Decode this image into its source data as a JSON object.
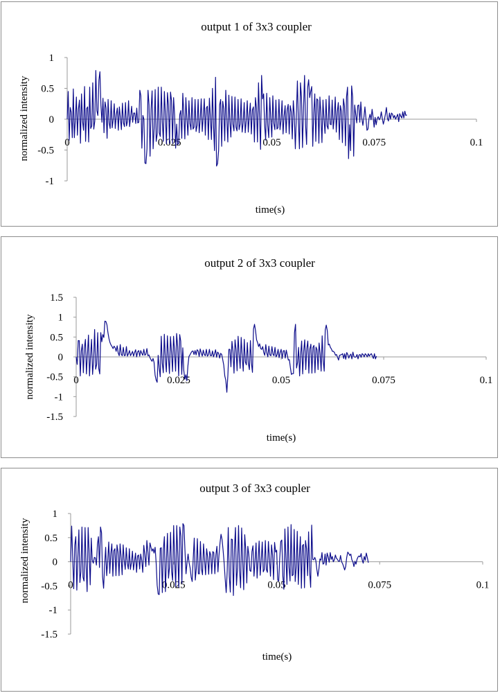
{
  "colors": {
    "series": "#0b0b8a",
    "axis": "#999999",
    "border": "#8c8c8c"
  },
  "chart_data": [
    {
      "type": "line",
      "title": "output 1 of 3x3 coupler",
      "xlabel": "time(s)",
      "ylabel": "normalized intensity",
      "xlim": [
        0,
        0.1
      ],
      "ylim": [
        -1,
        1
      ],
      "xticks": [
        0,
        0.025,
        0.05,
        0.075,
        0.1
      ],
      "xtick_labels": [
        "0",
        "0.025",
        "0.05",
        "0.075",
        "0.1"
      ],
      "yticks": [
        1,
        0.5,
        0,
        -0.5,
        -1
      ],
      "ytick_labels": [
        "1",
        "0.5",
        "0",
        "-0.5",
        "-1"
      ],
      "series": [
        {
          "name": "output 1",
          "x_step": 0.00025,
          "values": [
            0.0,
            0.45,
            -0.34,
            0.19,
            0.11,
            -0.3,
            0.49,
            -0.3,
            0.0,
            0.36,
            -0.26,
            0.16,
            0.31,
            -0.39,
            0.41,
            -0.03,
            -0.18,
            0.53,
            -0.36,
            0.17,
            0.2,
            -0.37,
            0.52,
            -0.15,
            -0.11,
            0.59,
            -0.16,
            -0.03,
            0.79,
            0.14,
            0.06,
            0.63,
            0.77,
            0.22,
            -0.05,
            0.34,
            -0.22,
            0.28,
            0.18,
            -0.31,
            0.32,
            -0.06,
            -0.15,
            0.3,
            -0.14,
            0.0,
            0.25,
            -0.15,
            0.07,
            0.18,
            -0.18,
            0.2,
            0.02,
            -0.17,
            0.26,
            -0.06,
            -0.12,
            0.27,
            -0.11,
            -0.03,
            0.3,
            -0.12,
            0.04,
            0.21,
            -0.05,
            0.1,
            0.1,
            -0.07,
            0.18,
            -0.06,
            -0.05,
            0.47,
            0.38,
            -0.47,
            0.06,
            0.0,
            -0.71,
            -0.72,
            -0.48,
            0.47,
            0.23,
            -0.6,
            0.16,
            0.46,
            -0.48,
            -0.15,
            0.48,
            -0.36,
            -0.24,
            0.52,
            -0.22,
            -0.28,
            0.52,
            -0.05,
            -0.36,
            0.45,
            0.07,
            -0.4,
            0.43,
            0.22,
            -0.39,
            0.44,
            0.3,
            -0.39,
            0.35,
            0.07,
            -0.47,
            -0.08,
            -0.41,
            -0.39,
            0.07,
            0.14,
            -0.31,
            0.42,
            0.09,
            -0.32,
            0.35,
            -0.0,
            -0.26,
            0.3,
            -0.07,
            -0.17,
            0.35,
            -0.16,
            -0.13,
            0.32,
            -0.2,
            -0.1,
            0.32,
            -0.22,
            -0.01,
            0.33,
            -0.2,
            0.04,
            0.33,
            -0.26,
            0.18,
            0.21,
            -0.33,
            0.34,
            0.02,
            -0.33,
            0.5,
            -0.1,
            -0.51,
            0.68,
            -0.76,
            -0.72,
            -0.51,
            0.23,
            0.32,
            -0.44,
            0.29,
            0.17,
            -0.35,
            0.47,
            0.02,
            -0.37,
            0.39,
            -0.04,
            -0.29,
            0.37,
            -0.08,
            -0.19,
            0.36,
            -0.13,
            -0.19,
            0.32,
            -0.17,
            -0.08,
            0.33,
            -0.21,
            -0.06,
            0.27,
            -0.22,
            -0.02,
            0.3,
            -0.21,
            0.06,
            0.26,
            -0.24,
            0.15,
            0.2,
            -0.37,
            0.35,
            0.18,
            -0.37,
            0.59,
            0.03,
            -0.49,
            0.71,
            0.33,
            0.41,
            -0.1,
            -0.34,
            0.42,
            -0.1,
            -0.3,
            0.35,
            0.0,
            -0.29,
            0.38,
            -0.07,
            -0.17,
            0.31,
            -0.16,
            -0.14,
            0.32,
            -0.17,
            -0.02,
            0.3,
            -0.24,
            0.05,
            0.22,
            -0.22,
            0.15,
            0.24,
            -0.24,
            0.22,
            0.12,
            -0.32,
            0.3,
            0.05,
            -0.48,
            0.07,
            0.62,
            -0.05,
            -0.48,
            0.59,
            0.36,
            -0.46,
            0.18,
            0.71,
            -0.1,
            -0.41,
            0.51,
            0.64,
            0.35,
            0.45,
            0.53,
            -0.44,
            0.1,
            0.41,
            -0.36,
            0.33,
            0.31,
            -0.39,
            0.36,
            0.07,
            -0.38,
            0.31,
            -0.0,
            -0.23,
            0.32,
            -0.11,
            -0.16,
            0.38,
            -0.08,
            -0.09,
            0.31,
            -0.16,
            0.02,
            0.36,
            -0.21,
            0.12,
            0.27,
            -0.33,
            0.22,
            0.13,
            -0.38,
            0.33,
            0.21,
            -0.43,
            0.36,
            0.52,
            -0.64,
            -0.09,
            -0.51,
            0.54,
            0.36,
            -0.6,
            0.23,
            0.08,
            -0.06,
            0.22,
            0.23,
            -0.05,
            0.28,
            0.01,
            -0.1,
            0.03,
            0.2,
            0.01,
            -0.18,
            -0.16,
            0.01,
            0.08,
            -0.01,
            0.16,
            0.03,
            -0.13,
            0.03,
            -0.09,
            0.01,
            0.04,
            -0.01,
            0.02,
            0.12,
            0.01,
            -0.08,
            -0.01,
            0.08,
            0.19,
            0.01,
            -0.03,
            0.1,
            0.0,
            0.1,
            0.08,
            0.02,
            0.06,
            0.0,
            0.04,
            0.08,
            -0.04,
            0.09,
            0.05,
            0.02,
            0.12,
            0.02,
            0.13,
            0.06,
            0.07
          ]
        }
      ]
    },
    {
      "type": "line",
      "title": "output 2 of 3x3 coupler",
      "xlabel": "time(s)",
      "ylabel": "normalized intensity",
      "xlim": [
        0,
        0.1
      ],
      "ylim": [
        -1.5,
        1.5
      ],
      "xticks": [
        0,
        0.025,
        0.05,
        0.075,
        0.1
      ],
      "xtick_labels": [
        "0",
        "0.025",
        "0.05",
        "0.075",
        "0.1"
      ],
      "yticks": [
        1.5,
        1,
        0.5,
        0,
        -0.5,
        -1,
        -1.5
      ],
      "ytick_labels": [
        "1.5",
        "1",
        "0.5",
        "0",
        "-0.5",
        "-1",
        "-1.5"
      ],
      "series": [
        {
          "name": "output 2",
          "x_step": 0.00025,
          "values": [
            0.0,
            -0.19,
            0.41,
            0.41,
            -0.48,
            0.15,
            0.32,
            -0.4,
            0.22,
            0.44,
            -0.43,
            0.08,
            0.55,
            -0.48,
            0.03,
            0.44,
            -0.44,
            -0.09,
            0.69,
            -0.31,
            -0.19,
            0.61,
            -0.29,
            -0.43,
            0.61,
            0.38,
            0.56,
            0.49,
            0.9,
            0.89,
            0.81,
            0.61,
            0.46,
            0.36,
            0.3,
            0.26,
            0.21,
            0.27,
            0.23,
            0.14,
            0.28,
            0.1,
            0.03,
            0.31,
            0.06,
            0.03,
            0.24,
            0.03,
            0.04,
            0.26,
            0.02,
            0.08,
            0.16,
            0.03,
            0.08,
            0.14,
            0.02,
            0.11,
            0.18,
            0.0,
            0.13,
            0.16,
            0.02,
            0.16,
            0.09,
            0.04,
            0.19,
            0.04,
            0.07,
            0.21,
            0.03,
            0.05,
            -0.02,
            -0.07,
            -0.11,
            -0.04,
            -0.14,
            -0.46,
            -0.58,
            -0.64,
            0.04,
            -0.27,
            -0.5,
            0.52,
            -0.16,
            -0.4,
            0.57,
            -0.04,
            -0.38,
            0.53,
            -0.01,
            -0.42,
            0.51,
            0.12,
            -0.37,
            0.52,
            0.14,
            -0.36,
            0.59,
            0.27,
            -0.48,
            0.56,
            0.4,
            -0.44,
            0.23,
            -0.34,
            -0.56,
            -0.45,
            -0.6,
            -0.23,
            0.01,
            0.05,
            0.1,
            0.14,
            0.15,
            0.06,
            0.16,
            0.05,
            0.18,
            0.15,
            0.01,
            0.2,
            0.1,
            0.02,
            0.17,
            0.06,
            0.03,
            0.19,
            0.02,
            0.05,
            0.19,
            0.03,
            0.03,
            0.15,
            -0.0,
            0.08,
            0.18,
            -0.01,
            0.12,
            0.09,
            -0.03,
            0.09,
            0.06,
            -0.07,
            -0.21,
            -0.48,
            -0.59,
            -0.89,
            -0.47,
            0.19,
            0.19,
            -0.25,
            0.39,
            0.14,
            -0.41,
            0.43,
            0.18,
            -0.35,
            0.52,
            0.06,
            -0.29,
            0.49,
            0.01,
            -0.36,
            0.44,
            -0.12,
            -0.2,
            0.36,
            -0.17,
            -0.32,
            0.41,
            -0.16,
            -0.39,
            0.7,
            0.82,
            0.66,
            0.43,
            0.36,
            0.26,
            0.33,
            0.21,
            0.19,
            0.26,
            0.11,
            0.04,
            0.31,
            0.1,
            0.0,
            0.27,
            0.05,
            0.03,
            0.26,
            0.07,
            0.03,
            0.24,
            0.0,
            0.05,
            0.19,
            -0.02,
            0.11,
            0.19,
            -0.04,
            0.15,
            0.16,
            -0.03,
            0.17,
            0.04,
            -0.08,
            -0.07,
            -0.27,
            -0.44,
            -0.42,
            -0.42,
            0.61,
            0.82,
            -0.28,
            -0.14,
            0.24,
            -0.48,
            0.06,
            0.4,
            -0.43,
            0.15,
            0.43,
            -0.32,
            0.21,
            0.4,
            -0.41,
            0.2,
            0.32,
            -0.41,
            0.24,
            0.29,
            -0.4,
            0.25,
            0.18,
            -0.32,
            0.35,
            0.09,
            -0.36,
            0.53,
            -0.08,
            -0.36,
            0.68,
            0.8,
            0.66,
            0.3,
            0.32,
            0.24,
            0.2,
            0.14,
            0.14,
            0.11,
            0.04,
            0.06,
            -0.01,
            -0.08,
            0.04,
            0.05,
            0.06,
            0.08,
            -0.04,
            0.08,
            -0.06,
            0.11,
            0.06,
            -0.03,
            0.04,
            0.07,
            -0.05,
            0.12,
            0.01,
            -0.01,
            -0.0,
            0.06,
            -0.05,
            0.05,
            0.06,
            -0.01,
            0.08,
            0.06,
            -0.0,
            0.08,
            0.05,
            0.0,
            0.08,
            0.02,
            0.06,
            0.08,
            0.02,
            -0.04,
            0.08,
            -0.05,
            0.02
          ]
        }
      ]
    },
    {
      "type": "line",
      "title": "output 3 of 3x3 coupler",
      "xlabel": "time(s)",
      "ylabel": "normalized intensity",
      "xlim": [
        0,
        0.1
      ],
      "ylim": [
        -1.5,
        1
      ],
      "xticks": [
        0,
        0.025,
        0.05,
        0.075,
        0.1
      ],
      "xtick_labels": [
        "0",
        "0.025",
        "0.05",
        "0.075",
        "0.1"
      ],
      "yticks": [
        1,
        0.5,
        0,
        -0.5,
        -1,
        -1.5
      ],
      "ytick_labels": [
        "1",
        "0.5",
        "0",
        "-0.5",
        "-1",
        "-1.5"
      ],
      "series": [
        {
          "name": "output 3",
          "x_step": 0.00025,
          "values": [
            0.0,
            0.74,
            0.09,
            -0.56,
            0.34,
            0.52,
            -0.59,
            0.09,
            0.66,
            -0.43,
            -0.2,
            0.72,
            -0.32,
            -0.4,
            0.71,
            -0.07,
            -0.62,
            0.71,
            0.18,
            -0.48,
            0.49,
            0.03,
            -0.03,
            0.09,
            0.08,
            -0.07,
            0.36,
            0.52,
            -0.12,
            0.72,
            0.6,
            -0.31,
            -0.55,
            -0.08,
            0.3,
            -0.29,
            0.02,
            0.41,
            -0.24,
            0.17,
            0.37,
            -0.3,
            0.23,
            0.27,
            -0.29,
            0.35,
            0.2,
            -0.29,
            0.37,
            0.09,
            -0.27,
            0.35,
            0.03,
            -0.16,
            0.29,
            -0.03,
            -0.15,
            0.27,
            -0.16,
            -0.02,
            0.22,
            -0.17,
            0.01,
            0.18,
            -0.22,
            0.12,
            0.14,
            -0.15,
            0.16,
            0.03,
            -0.22,
            0.34,
            0.15,
            -0.1,
            0.44,
            0.2,
            -0.07,
            0.39,
            0.3,
            0.22,
            0.27,
            0.18,
            0.3,
            -0.02,
            -0.49,
            -0.67,
            -0.68,
            0.28,
            0.29,
            -0.64,
            0.25,
            0.52,
            -0.62,
            0.04,
            0.59,
            -0.34,
            -0.11,
            0.61,
            -0.2,
            -0.39,
            0.75,
            0.04,
            -0.52,
            0.75,
            0.15,
            -0.53,
            0.72,
            0.53,
            -0.45,
            0.79,
            0.75,
            0.23,
            -0.25,
            -0.02,
            0.16,
            -0.02,
            -0.13,
            -0.32,
            -0.41,
            0.07,
            0.49,
            -0.38,
            -0.14,
            0.48,
            -0.25,
            -0.25,
            0.42,
            -0.15,
            -0.27,
            0.37,
            0.04,
            -0.27,
            0.27,
            0.1,
            -0.26,
            0.21,
            0.14,
            -0.25,
            0.21,
            0.19,
            -0.25,
            0.14,
            0.32,
            -0.21,
            0.13,
            0.39,
            0.57,
            0.46,
            0.24,
            -0.02,
            -0.35,
            -0.64,
            -0.19,
            0.71,
            -0.3,
            -0.63,
            0.47,
            0.46,
            -0.7,
            0.25,
            0.71,
            -0.49,
            -0.12,
            0.75,
            -0.18,
            -0.54,
            0.7,
            0.04,
            -0.58,
            0.56,
            0.25,
            -0.44,
            0.32,
            0.14,
            -0.18,
            -0.2,
            0.21,
            0.33,
            -0.3,
            0.01,
            0.39,
            -0.34,
            0.05,
            0.43,
            -0.28,
            0.02,
            0.41,
            -0.21,
            -0.16,
            0.44,
            -0.16,
            -0.22,
            0.42,
            0.05,
            -0.3,
            0.35,
            0.14,
            -0.37,
            0.4,
            0.2,
            0.24,
            -0.38,
            -0.4,
            0.08,
            0.42,
            0.45,
            -0.3,
            -0.57,
            0.68,
            0.07,
            -0.47,
            0.72,
            -0.11,
            -0.4,
            0.77,
            -0.29,
            -0.27,
            0.67,
            -0.41,
            -0.1,
            0.63,
            -0.47,
            0.08,
            0.52,
            -0.55,
            0.33,
            0.36,
            -0.54,
            0.44,
            0.27,
            -0.29,
            0.62,
            -0.2,
            -0.53,
            0.76,
            0.05,
            0.04,
            0.09,
            0.03,
            -0.16,
            -0.3,
            -0.15,
            0.06,
            0.03,
            0.19,
            -0.05,
            -0.03,
            0.16,
            -0.07,
            0.18,
            0.1,
            -0.01,
            0.19,
            0.05,
            0.11,
            0.0,
            0.04,
            0.14,
            0.07,
            0.05,
            0.01,
            0.01,
            0.13,
            0.0,
            -0.04,
            -0.1,
            -0.17,
            -0.1,
            0.09,
            0.2,
            0.17,
            0.13,
            0.16,
            0.04,
            0.0,
            -0.1,
            0.01,
            -0.05,
            0.05,
            0.1,
            0.12,
            0.1,
            0.17,
            0.04,
            -0.03,
            0.11,
            0.03,
            0.18,
            0.09,
            -0.02
          ]
        }
      ]
    }
  ]
}
